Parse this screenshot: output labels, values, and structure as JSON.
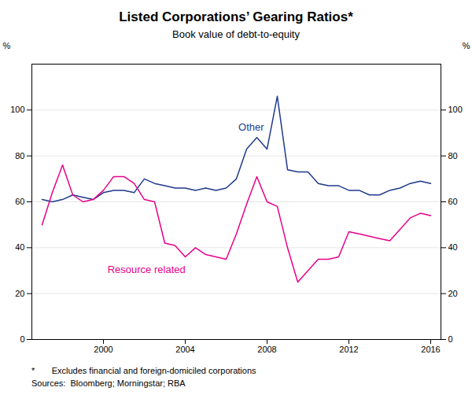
{
  "chart_data": {
    "type": "line",
    "title": "Listed Corporations’ Gearing Ratios*",
    "subtitle": "Book value of debt-to-equity",
    "ylabel": "%",
    "y2label": "%",
    "footnote": "*       Excludes financial and foreign-domiciled corporations",
    "sources": "Sources:  Bloomberg; Morningstar; RBA",
    "x": [
      1997.0,
      1997.5,
      1998.0,
      1998.5,
      1999.0,
      1999.5,
      2000.0,
      2000.5,
      2001.0,
      2001.5,
      2002.0,
      2002.5,
      2003.0,
      2003.5,
      2004.0,
      2004.5,
      2005.0,
      2005.5,
      2006.0,
      2006.5,
      2007.0,
      2007.5,
      2008.0,
      2008.5,
      2009.0,
      2009.5,
      2010.0,
      2010.5,
      2011.0,
      2011.5,
      2012.0,
      2012.5,
      2013.0,
      2013.5,
      2014.0,
      2014.5,
      2015.0,
      2015.5,
      2016.0
    ],
    "series": [
      {
        "name": "Other",
        "color": "#1f3a8c",
        "label_x": 2006.6,
        "label_y": 91,
        "values": [
          61,
          60,
          61,
          63,
          62,
          61,
          64,
          65,
          65,
          64,
          70,
          68,
          67,
          66,
          66,
          65,
          66,
          65,
          66,
          70,
          83,
          88,
          83,
          106,
          74,
          73,
          73,
          68,
          67,
          67,
          65,
          65,
          63,
          63,
          65,
          66,
          68,
          69,
          68
        ]
      },
      {
        "name": "Resource related",
        "color": "#e8008a",
        "label_x": 2000.2,
        "label_y": 29,
        "values": [
          50,
          64,
          76,
          63,
          60,
          61,
          65,
          71,
          71,
          68,
          61,
          60,
          42,
          41,
          36,
          40,
          37,
          36,
          35,
          46,
          59,
          71,
          60,
          58,
          40,
          25,
          30,
          35,
          35,
          36,
          47,
          46,
          45,
          44,
          43,
          48,
          53,
          55,
          54
        ]
      }
    ],
    "xlim": [
      1996.5,
      2016.5
    ],
    "xticks": [
      2000,
      2004,
      2008,
      2012,
      2016
    ],
    "ylim": [
      0,
      120
    ],
    "yticks": [
      0,
      20,
      40,
      60,
      80,
      100
    ],
    "grid": true
  }
}
